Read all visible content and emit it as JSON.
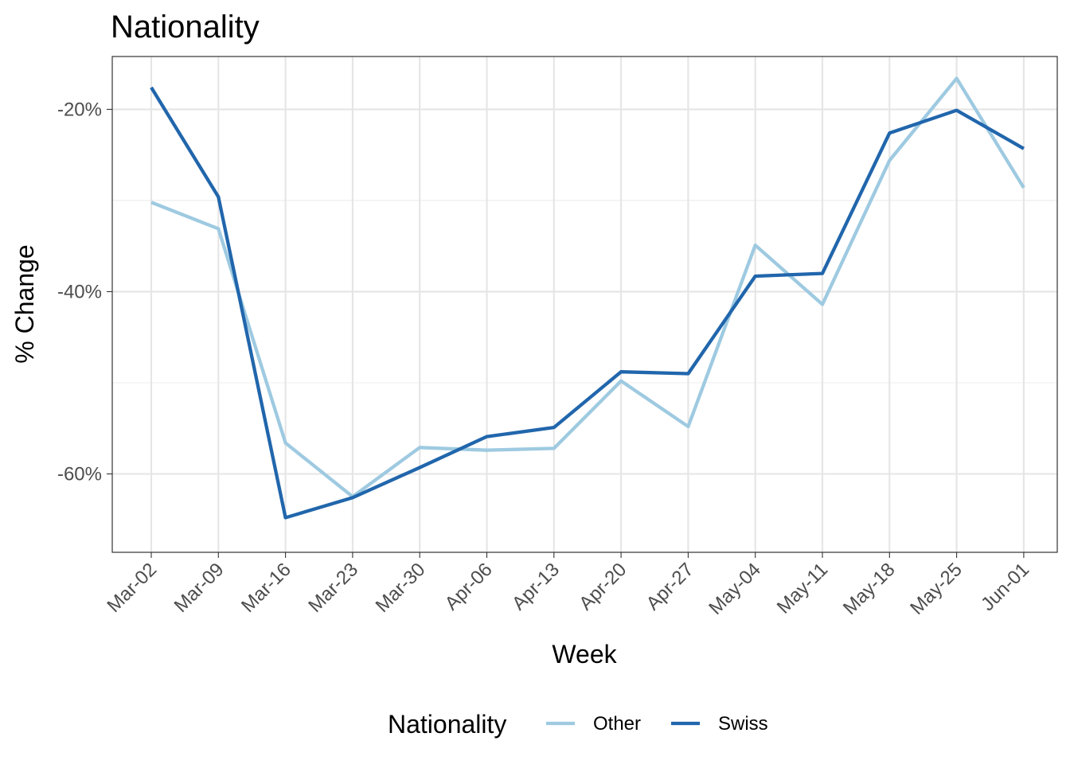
{
  "chart_data": {
    "type": "line",
    "title": "Nationality",
    "xlabel": "Week",
    "ylabel": "% Change",
    "categories": [
      "Mar-02",
      "Mar-09",
      "Mar-16",
      "Mar-23",
      "Mar-30",
      "Apr-06",
      "Apr-13",
      "Apr-20",
      "Apr-27",
      "May-04",
      "May-11",
      "May-18",
      "May-25",
      "Jun-01"
    ],
    "y_ticks": [
      -60,
      -40,
      -20
    ],
    "y_tick_labels": [
      "-60%",
      "-40%",
      "-20%"
    ],
    "ylim": [
      -68.6,
      -14.2
    ],
    "grid": true,
    "legend": {
      "title": "Nationality",
      "position": "bottom"
    },
    "series": [
      {
        "name": "Other",
        "color": "#9ecae1",
        "values": [
          -30.2,
          -33.1,
          -56.6,
          -62.5,
          -57.1,
          -57.4,
          -57.2,
          -49.8,
          -54.8,
          -34.9,
          -41.4,
          -25.6,
          -16.6,
          -28.6
        ]
      },
      {
        "name": "Swiss",
        "color": "#2166ac",
        "values": [
          -17.6,
          -29.6,
          -64.8,
          -62.6,
          -59.3,
          -55.9,
          -54.9,
          -48.8,
          -49.0,
          -38.3,
          -38.0,
          -22.6,
          -20.1,
          -24.3
        ]
      }
    ]
  }
}
